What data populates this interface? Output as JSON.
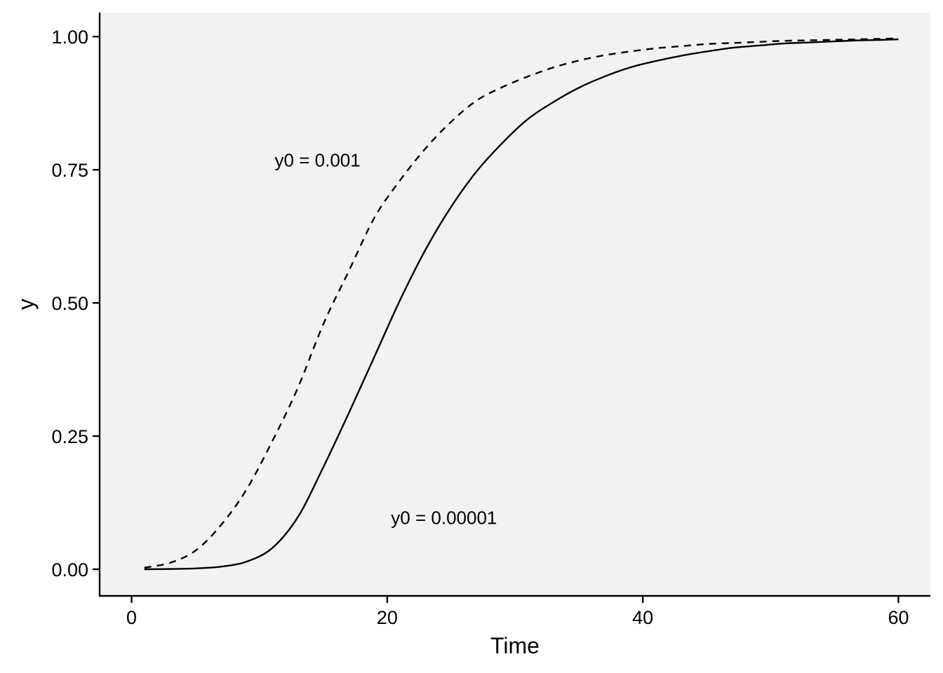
{
  "chart_data": {
    "type": "line",
    "xlabel": "Time",
    "ylabel": "y",
    "xlim": [
      -2.5,
      62.5
    ],
    "ylim": [
      -0.05,
      1.045
    ],
    "x_ticks": [
      0,
      20,
      40,
      60
    ],
    "x_tick_labels": [
      "0",
      "20",
      "40",
      "60"
    ],
    "y_ticks": [
      0,
      0.25,
      0.5,
      0.75,
      1.0
    ],
    "y_tick_labels": [
      "0.00",
      "0.25",
      "0.50",
      "0.75",
      "1.00"
    ],
    "grid": false,
    "panel_background": "#f2f2f2",
    "x": [
      1,
      3,
      5,
      7,
      9,
      11,
      13,
      15,
      17,
      19,
      21,
      23,
      25,
      27,
      29,
      31,
      33,
      35,
      37,
      39,
      41,
      43,
      45,
      47,
      49,
      51,
      53,
      55,
      57,
      59,
      60
    ],
    "series": [
      {
        "line_style": "solid",
        "color": "#000000",
        "values": [
          0.0,
          0.0005,
          0.0016,
          0.0049,
          0.0143,
          0.0397,
          0.0976,
          0.1915,
          0.2934,
          0.399,
          0.505,
          0.6,
          0.6803,
          0.747,
          0.8,
          0.845,
          0.877,
          0.904,
          0.925,
          0.942,
          0.954,
          0.964,
          0.972,
          0.979,
          0.983,
          0.987,
          0.989,
          0.991,
          0.993,
          0.994,
          0.995
        ]
      },
      {
        "line_style": "dashed",
        "color": "#000000",
        "values": [
          0.003,
          0.012,
          0.035,
          0.083,
          0.15,
          0.24,
          0.34,
          0.46,
          0.56,
          0.66,
          0.73,
          0.79,
          0.84,
          0.88,
          0.905,
          0.925,
          0.942,
          0.955,
          0.965,
          0.972,
          0.978,
          0.982,
          0.986,
          0.988,
          0.99,
          0.992,
          0.993,
          0.994,
          0.995,
          0.996,
          0.997
        ]
      }
    ],
    "annotations": [
      {
        "text": "y0 = 0.001",
        "x": 11.2,
        "y": 0.768
      },
      {
        "text": "y0 = 0.00001",
        "x": 20.3,
        "y": 0.097
      }
    ]
  }
}
